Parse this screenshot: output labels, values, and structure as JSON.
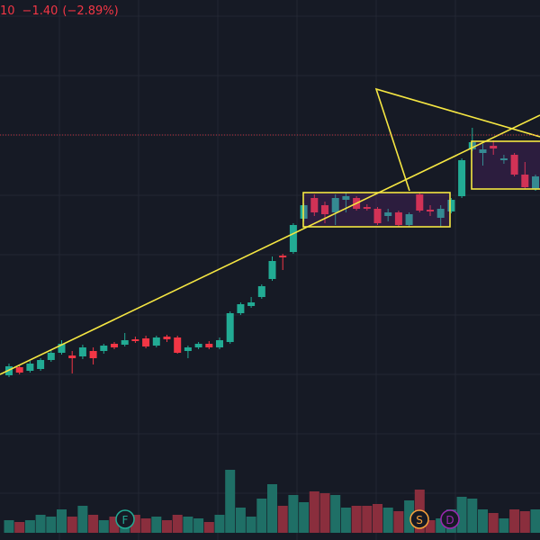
{
  "header": {
    "price_fragment": "10",
    "change": "−1.40",
    "change_percent": "(−2.89%)"
  },
  "events": [
    {
      "label": "F",
      "color": "#22ab94"
    },
    {
      "label": "S",
      "color": "#f7a23b"
    },
    {
      "label": "D",
      "color": "#9c27b0"
    }
  ],
  "chart_data": {
    "type": "candlestick",
    "up_color": "#22ab94",
    "down_color": "#f23645",
    "up_volume_color": "#1f6f66",
    "down_volume_color": "#8a2e3d",
    "ylim": [
      0,
      600
    ],
    "y2lim": [
      0,
      80
    ],
    "price_line": 450,
    "price_line_color": "#f23645",
    "open": [
      183,
      192,
      188,
      190,
      200,
      208,
      205,
      204,
      210,
      210,
      218,
      217,
      223,
      224,
      216,
      226,
      225,
      210,
      214,
      218,
      214,
      220,
      252,
      260,
      270,
      290,
      316,
      320,
      357,
      380,
      372,
      364,
      378,
      380,
      370,
      368,
      360,
      364,
      350,
      384,
      367,
      358,
      365,
      382,
      434,
      430,
      438,
      422,
      428,
      406,
      390
    ],
    "close": [
      193,
      186,
      196,
      200,
      208,
      218,
      202,
      214,
      202,
      216,
      214,
      222,
      221,
      215,
      225,
      223,
      208,
      214,
      218,
      214,
      222,
      252,
      262,
      264,
      282,
      310,
      314,
      350,
      372,
      364,
      362,
      380,
      382,
      368,
      368,
      352,
      364,
      350,
      362,
      366,
      365,
      368,
      378,
      422,
      442,
      434,
      435,
      424,
      406,
      392,
      404
    ],
    "high": [
      196,
      194,
      199,
      202,
      211,
      222,
      210,
      217,
      214,
      218,
      220,
      230,
      226,
      227,
      227,
      228,
      227,
      216,
      220,
      221,
      225,
      254,
      264,
      270,
      284,
      315,
      318,
      352,
      374,
      384,
      376,
      384,
      386,
      382,
      373,
      370,
      368,
      366,
      364,
      386,
      372,
      372,
      380,
      424,
      458,
      440,
      444,
      428,
      430,
      420,
      406
    ],
    "low": [
      181,
      184,
      186,
      188,
      198,
      206,
      185,
      201,
      195,
      207,
      212,
      215,
      219,
      213,
      214,
      220,
      207,
      202,
      212,
      212,
      212,
      218,
      250,
      258,
      268,
      288,
      300,
      318,
      354,
      360,
      352,
      350,
      364,
      366,
      366,
      350,
      354,
      348,
      348,
      364,
      360,
      348,
      363,
      380,
      432,
      416,
      428,
      418,
      404,
      390,
      388
    ],
    "volume": [
      14,
      12,
      14,
      20,
      18,
      26,
      18,
      30,
      20,
      14,
      18,
      22,
      20,
      16,
      18,
      14,
      20,
      18,
      16,
      12,
      20,
      70,
      28,
      18,
      38,
      54,
      30,
      42,
      34,
      46,
      44,
      42,
      28,
      30,
      30,
      32,
      28,
      24,
      36,
      48,
      14,
      16,
      26,
      40,
      38,
      26,
      22,
      16,
      26,
      24,
      26
    ]
  }
}
